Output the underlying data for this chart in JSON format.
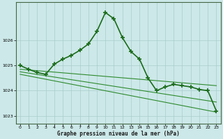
{
  "title": "",
  "xlabel": "Graphe pression niveau de la mer (hPa)",
  "ylabel": "",
  "background_color": "#cce8e8",
  "grid_color": "#aacccc",
  "xlim": [
    -0.5,
    23.5
  ],
  "ylim": [
    1022.7,
    1027.5
  ],
  "yticks": [
    1023,
    1024,
    1025,
    1026
  ],
  "xticks": [
    0,
    1,
    2,
    3,
    4,
    5,
    6,
    7,
    8,
    9,
    10,
    11,
    12,
    13,
    14,
    15,
    16,
    17,
    18,
    19,
    20,
    21,
    22,
    23
  ],
  "series": [
    {
      "x": [
        0,
        1,
        2,
        3,
        4,
        5,
        6,
        7,
        8,
        9,
        10,
        11,
        12,
        13,
        14,
        15,
        16,
        17,
        18,
        19,
        20,
        21,
        22,
        23
      ],
      "y": [
        1025.0,
        1024.85,
        1024.72,
        1024.65,
        1025.05,
        1025.25,
        1025.4,
        1025.6,
        1025.85,
        1026.35,
        1027.1,
        1026.85,
        1026.1,
        1025.55,
        1025.25,
        1024.5,
        1024.0,
        1024.15,
        1024.25,
        1024.2,
        1024.15,
        1024.05,
        1024.0,
        1023.2
      ],
      "color": "#1a6b1a",
      "linewidth": 1.2,
      "marker": "+",
      "markersize": 4,
      "markeredgewidth": 1.2,
      "zorder": 5
    },
    {
      "x": [
        0,
        23
      ],
      "y": [
        1024.85,
        1024.2
      ],
      "color": "#2d8a2d",
      "linewidth": 0.8,
      "marker": null,
      "markersize": 0,
      "markeredgewidth": 0,
      "zorder": 3
    },
    {
      "x": [
        0,
        23
      ],
      "y": [
        1024.75,
        1023.55
      ],
      "color": "#2d8a2d",
      "linewidth": 0.8,
      "marker": null,
      "markersize": 0,
      "markeredgewidth": 0,
      "zorder": 3
    },
    {
      "x": [
        0,
        23
      ],
      "y": [
        1024.65,
        1023.15
      ],
      "color": "#2d8a2d",
      "linewidth": 0.8,
      "marker": null,
      "markersize": 0,
      "markeredgewidth": 0,
      "zorder": 3
    }
  ]
}
